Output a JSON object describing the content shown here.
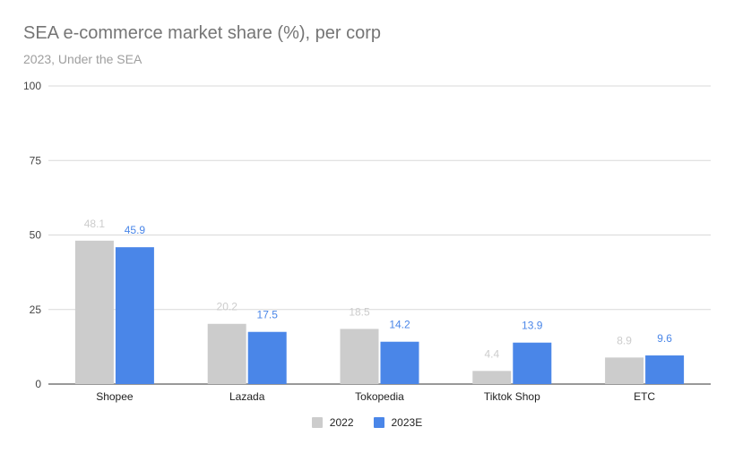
{
  "chart_data": {
    "type": "bar",
    "title": "SEA e-commerce market share (%), per corp",
    "subtitle": "2023, Under the SEA",
    "categories": [
      "Shopee",
      "Lazada",
      "Tokopedia",
      "Tiktok Shop",
      "ETC"
    ],
    "series": [
      {
        "name": "2022",
        "values": [
          48.1,
          20.2,
          18.5,
          4.4,
          8.9
        ],
        "color": "#cccccc",
        "label_color": "#cccccc"
      },
      {
        "name": "2023E",
        "values": [
          45.9,
          17.5,
          14.2,
          13.9,
          9.6
        ],
        "color": "#4a86e8",
        "label_color": "#4a86e8"
      }
    ],
    "ylim": [
      0,
      100
    ],
    "yticks": [
      0,
      25,
      50,
      75,
      100
    ],
    "grid": true,
    "legend_position": "bottom"
  }
}
